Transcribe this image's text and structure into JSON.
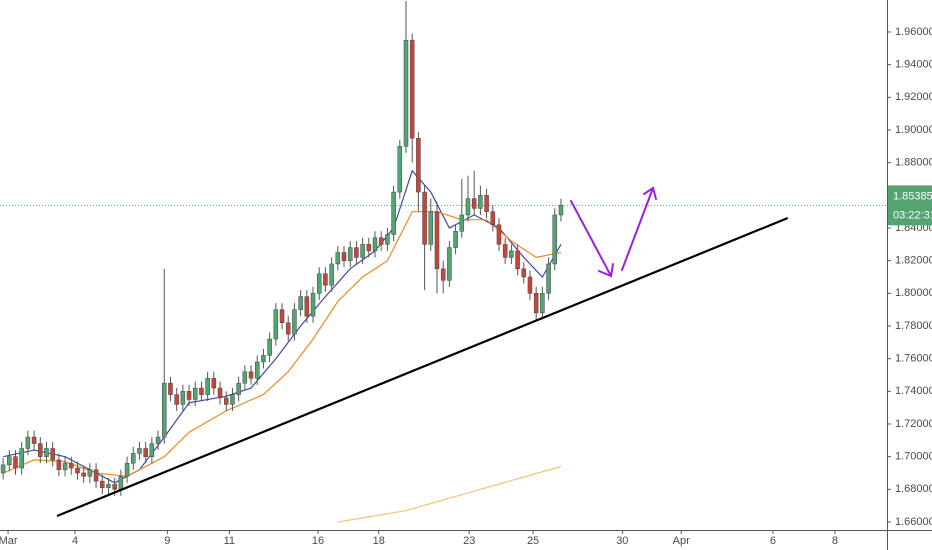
{
  "chart_data": {
    "type": "candlestick",
    "up_color": "#53a373",
    "down_color": "#c4473a",
    "open": [
      1.69,
      1.695,
      1.7,
      1.693,
      1.705,
      1.712,
      1.708,
      1.7,
      1.705,
      1.698,
      1.692,
      1.696,
      1.693,
      1.69,
      1.688,
      1.692,
      1.685,
      1.681,
      1.683,
      1.68,
      1.688,
      1.696,
      1.702,
      1.705,
      1.7,
      1.708,
      1.712,
      1.745,
      1.738,
      1.732,
      1.74,
      1.735,
      1.742,
      1.738,
      1.748,
      1.742,
      1.736,
      1.732,
      1.738,
      1.745,
      1.752,
      1.748,
      1.758,
      1.762,
      1.772,
      1.79,
      1.782,
      1.775,
      1.79,
      1.798,
      1.786,
      1.8,
      1.812,
      1.805,
      1.818,
      1.825,
      1.82,
      1.828,
      1.822,
      1.83,
      1.826,
      1.834,
      1.83,
      1.836,
      1.862,
      1.89,
      1.955,
      1.895,
      1.862,
      1.83,
      1.85,
      1.815,
      1.808,
      1.828,
      1.838,
      1.848,
      1.858,
      1.852,
      1.86,
      1.85,
      1.842,
      1.83,
      1.822,
      1.826,
      1.815,
      1.81,
      1.8,
      1.788,
      1.8,
      1.818,
      1.848
    ],
    "high": [
      1.699,
      1.704,
      1.704,
      1.709,
      1.716,
      1.716,
      1.712,
      1.709,
      1.709,
      1.702,
      1.7,
      1.7,
      1.697,
      1.694,
      1.696,
      1.696,
      1.689,
      1.687,
      1.687,
      1.692,
      1.7,
      1.706,
      1.709,
      1.709,
      1.712,
      1.716,
      1.815,
      1.749,
      1.742,
      1.744,
      1.744,
      1.746,
      1.746,
      1.752,
      1.752,
      1.746,
      1.74,
      1.742,
      1.749,
      1.756,
      1.756,
      1.762,
      1.766,
      1.776,
      1.794,
      1.794,
      1.786,
      1.794,
      1.802,
      1.802,
      1.804,
      1.816,
      1.816,
      1.822,
      1.829,
      1.829,
      1.832,
      1.832,
      1.834,
      1.834,
      1.838,
      1.838,
      1.84,
      1.866,
      1.894,
      1.979,
      1.959,
      1.899,
      1.866,
      1.858,
      1.856,
      1.82,
      1.832,
      1.842,
      1.87,
      1.872,
      1.875,
      1.866,
      1.864,
      1.854,
      1.846,
      1.834,
      1.83,
      1.83,
      1.819,
      1.814,
      1.804,
      1.804,
      1.822,
      1.852,
      1.858
    ],
    "low": [
      1.686,
      1.691,
      1.689,
      1.689,
      1.701,
      1.704,
      1.696,
      1.696,
      1.694,
      1.688,
      1.688,
      1.689,
      1.686,
      1.684,
      1.684,
      1.681,
      1.677,
      1.677,
      1.676,
      1.676,
      1.684,
      1.692,
      1.698,
      1.696,
      1.696,
      1.704,
      1.708,
      1.734,
      1.728,
      1.728,
      1.731,
      1.731,
      1.734,
      1.734,
      1.738,
      1.732,
      1.728,
      1.728,
      1.734,
      1.741,
      1.744,
      1.744,
      1.754,
      1.758,
      1.768,
      1.778,
      1.771,
      1.771,
      1.786,
      1.782,
      1.782,
      1.796,
      1.801,
      1.801,
      1.814,
      1.816,
      1.816,
      1.818,
      1.818,
      1.822,
      1.822,
      1.826,
      1.826,
      1.832,
      1.858,
      1.886,
      1.88,
      1.85,
      1.802,
      1.826,
      1.8,
      1.8,
      1.804,
      1.824,
      1.834,
      1.844,
      1.848,
      1.848,
      1.846,
      1.838,
      1.826,
      1.818,
      1.818,
      1.811,
      1.806,
      1.796,
      1.784,
      1.784,
      1.796,
      1.814,
      1.844
    ],
    "close": [
      1.695,
      1.7,
      1.693,
      1.705,
      1.712,
      1.708,
      1.7,
      1.705,
      1.698,
      1.692,
      1.696,
      1.693,
      1.69,
      1.688,
      1.692,
      1.685,
      1.681,
      1.683,
      1.68,
      1.688,
      1.696,
      1.702,
      1.705,
      1.7,
      1.708,
      1.712,
      1.745,
      1.738,
      1.732,
      1.74,
      1.735,
      1.742,
      1.738,
      1.748,
      1.742,
      1.736,
      1.732,
      1.738,
      1.745,
      1.752,
      1.748,
      1.758,
      1.762,
      1.772,
      1.79,
      1.782,
      1.775,
      1.79,
      1.798,
      1.786,
      1.8,
      1.812,
      1.805,
      1.818,
      1.825,
      1.82,
      1.828,
      1.822,
      1.83,
      1.826,
      1.834,
      1.83,
      1.836,
      1.862,
      1.89,
      1.955,
      1.895,
      1.862,
      1.83,
      1.85,
      1.815,
      1.808,
      1.828,
      1.838,
      1.848,
      1.858,
      1.852,
      1.86,
      1.85,
      1.842,
      1.83,
      1.822,
      1.826,
      1.815,
      1.81,
      1.8,
      1.788,
      1.8,
      1.818,
      1.848,
      1.854
    ],
    "lines": [
      {
        "color": "#3d4a9e",
        "x": [
          0,
          5,
          10,
          15,
          18,
          22,
          26,
          30,
          36,
          40,
          44,
          48,
          52,
          56,
          60,
          63,
          66,
          69,
          72,
          76,
          80,
          84,
          87,
          90
        ],
        "values": [
          1.7,
          1.704,
          1.7,
          1.69,
          1.684,
          1.692,
          1.712,
          1.733,
          1.737,
          1.742,
          1.76,
          1.78,
          1.798,
          1.815,
          1.826,
          1.84,
          1.875,
          1.862,
          1.84,
          1.848,
          1.84,
          1.822,
          1.81,
          1.83
        ]
      },
      {
        "color": "#f08a24",
        "x": [
          0,
          5,
          10,
          15,
          20,
          26,
          30,
          36,
          42,
          46,
          50,
          54,
          58,
          62,
          64,
          66,
          70,
          74,
          78,
          82,
          86,
          90
        ],
        "values": [
          1.69,
          1.698,
          1.697,
          1.69,
          1.688,
          1.7,
          1.715,
          1.728,
          1.738,
          1.752,
          1.772,
          1.795,
          1.81,
          1.82,
          1.835,
          1.85,
          1.85,
          1.845,
          1.845,
          1.832,
          1.822,
          1.825
        ]
      },
      {
        "color": "#f5c27a",
        "x": [
          54,
          65,
          77,
          90
        ],
        "values": [
          1.66,
          1.667,
          1.68,
          1.694
        ]
      }
    ],
    "trendline": {
      "color": "#000000",
      "x": [
        8.7,
        126.6
      ],
      "values": [
        1.6637,
        1.8461
      ]
    },
    "xlim": [
      -0.5,
      142.6
    ],
    "xticks": [
      {
        "value": 0.8,
        "label": "Mar"
      },
      {
        "value": 11.6,
        "label": "4"
      },
      {
        "value": 26.5,
        "label": "9"
      },
      {
        "value": 36.5,
        "label": "11"
      },
      {
        "value": 50.8,
        "label": "16"
      },
      {
        "value": 60.6,
        "label": "18"
      },
      {
        "value": 75.2,
        "label": "23"
      },
      {
        "value": 85.5,
        "label": "25"
      },
      {
        "value": 99.9,
        "label": "30"
      },
      {
        "value": 109.4,
        "label": "Apr"
      },
      {
        "value": 124.2,
        "label": "6"
      },
      {
        "value": 134.2,
        "label": "8"
      }
    ],
    "ylim": [
      1.6551,
      1.9796
    ],
    "yticks": [
      {
        "value": 1.66,
        "label": "1.66000"
      },
      {
        "value": 1.68,
        "label": "1.68000"
      },
      {
        "value": 1.7,
        "label": "1.70000"
      },
      {
        "value": 1.72,
        "label": "1.72000"
      },
      {
        "value": 1.74,
        "label": "1.74000"
      },
      {
        "value": 1.76,
        "label": "1.76000"
      },
      {
        "value": 1.78,
        "label": "1.78000"
      },
      {
        "value": 1.8,
        "label": "1.80000"
      },
      {
        "value": 1.82,
        "label": "1.82000"
      },
      {
        "value": 1.84,
        "label": "1.84000"
      },
      {
        "value": 1.86,
        "label": "1.86000"
      },
      {
        "value": 1.88,
        "label": "1.88000"
      },
      {
        "value": 1.9,
        "label": "1.90000"
      },
      {
        "value": 1.92,
        "label": "1.92000"
      },
      {
        "value": 1.94,
        "label": "1.94000"
      },
      {
        "value": 1.96,
        "label": "1.96000"
      }
    ],
    "last_price": {
      "value": 1.85385,
      "label": "1.85385",
      "color": "#53a373"
    },
    "countdown": "03:22:31"
  }
}
